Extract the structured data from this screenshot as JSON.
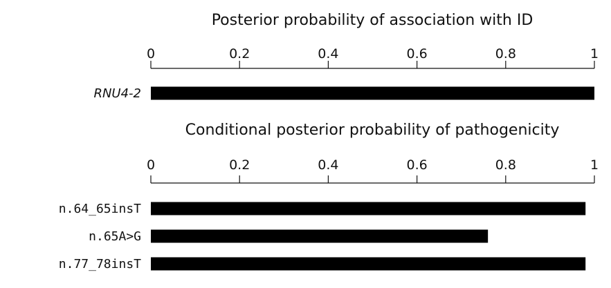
{
  "chart_data": [
    {
      "type": "bar",
      "orientation": "horizontal",
      "title": "Posterior probability of association with ID",
      "xlim": [
        0,
        1
      ],
      "xticks": [
        "0",
        "0.2",
        "0.4",
        "0.6",
        "0.8",
        "1"
      ],
      "categories": [
        "RNU4-2"
      ],
      "values": [
        1.0
      ],
      "category_style": "italic",
      "bar_color": "#000000"
    },
    {
      "type": "bar",
      "orientation": "horizontal",
      "title": "Conditional posterior probability of pathogenicity",
      "xlim": [
        0,
        1
      ],
      "xticks": [
        "0",
        "0.2",
        "0.4",
        "0.6",
        "0.8",
        "1"
      ],
      "categories": [
        "n.64_65insT",
        "n.65A>G",
        "n.77_78insT"
      ],
      "values": [
        0.98,
        0.76,
        0.98
      ],
      "category_style": "monospace",
      "bar_color": "#000000"
    }
  ]
}
